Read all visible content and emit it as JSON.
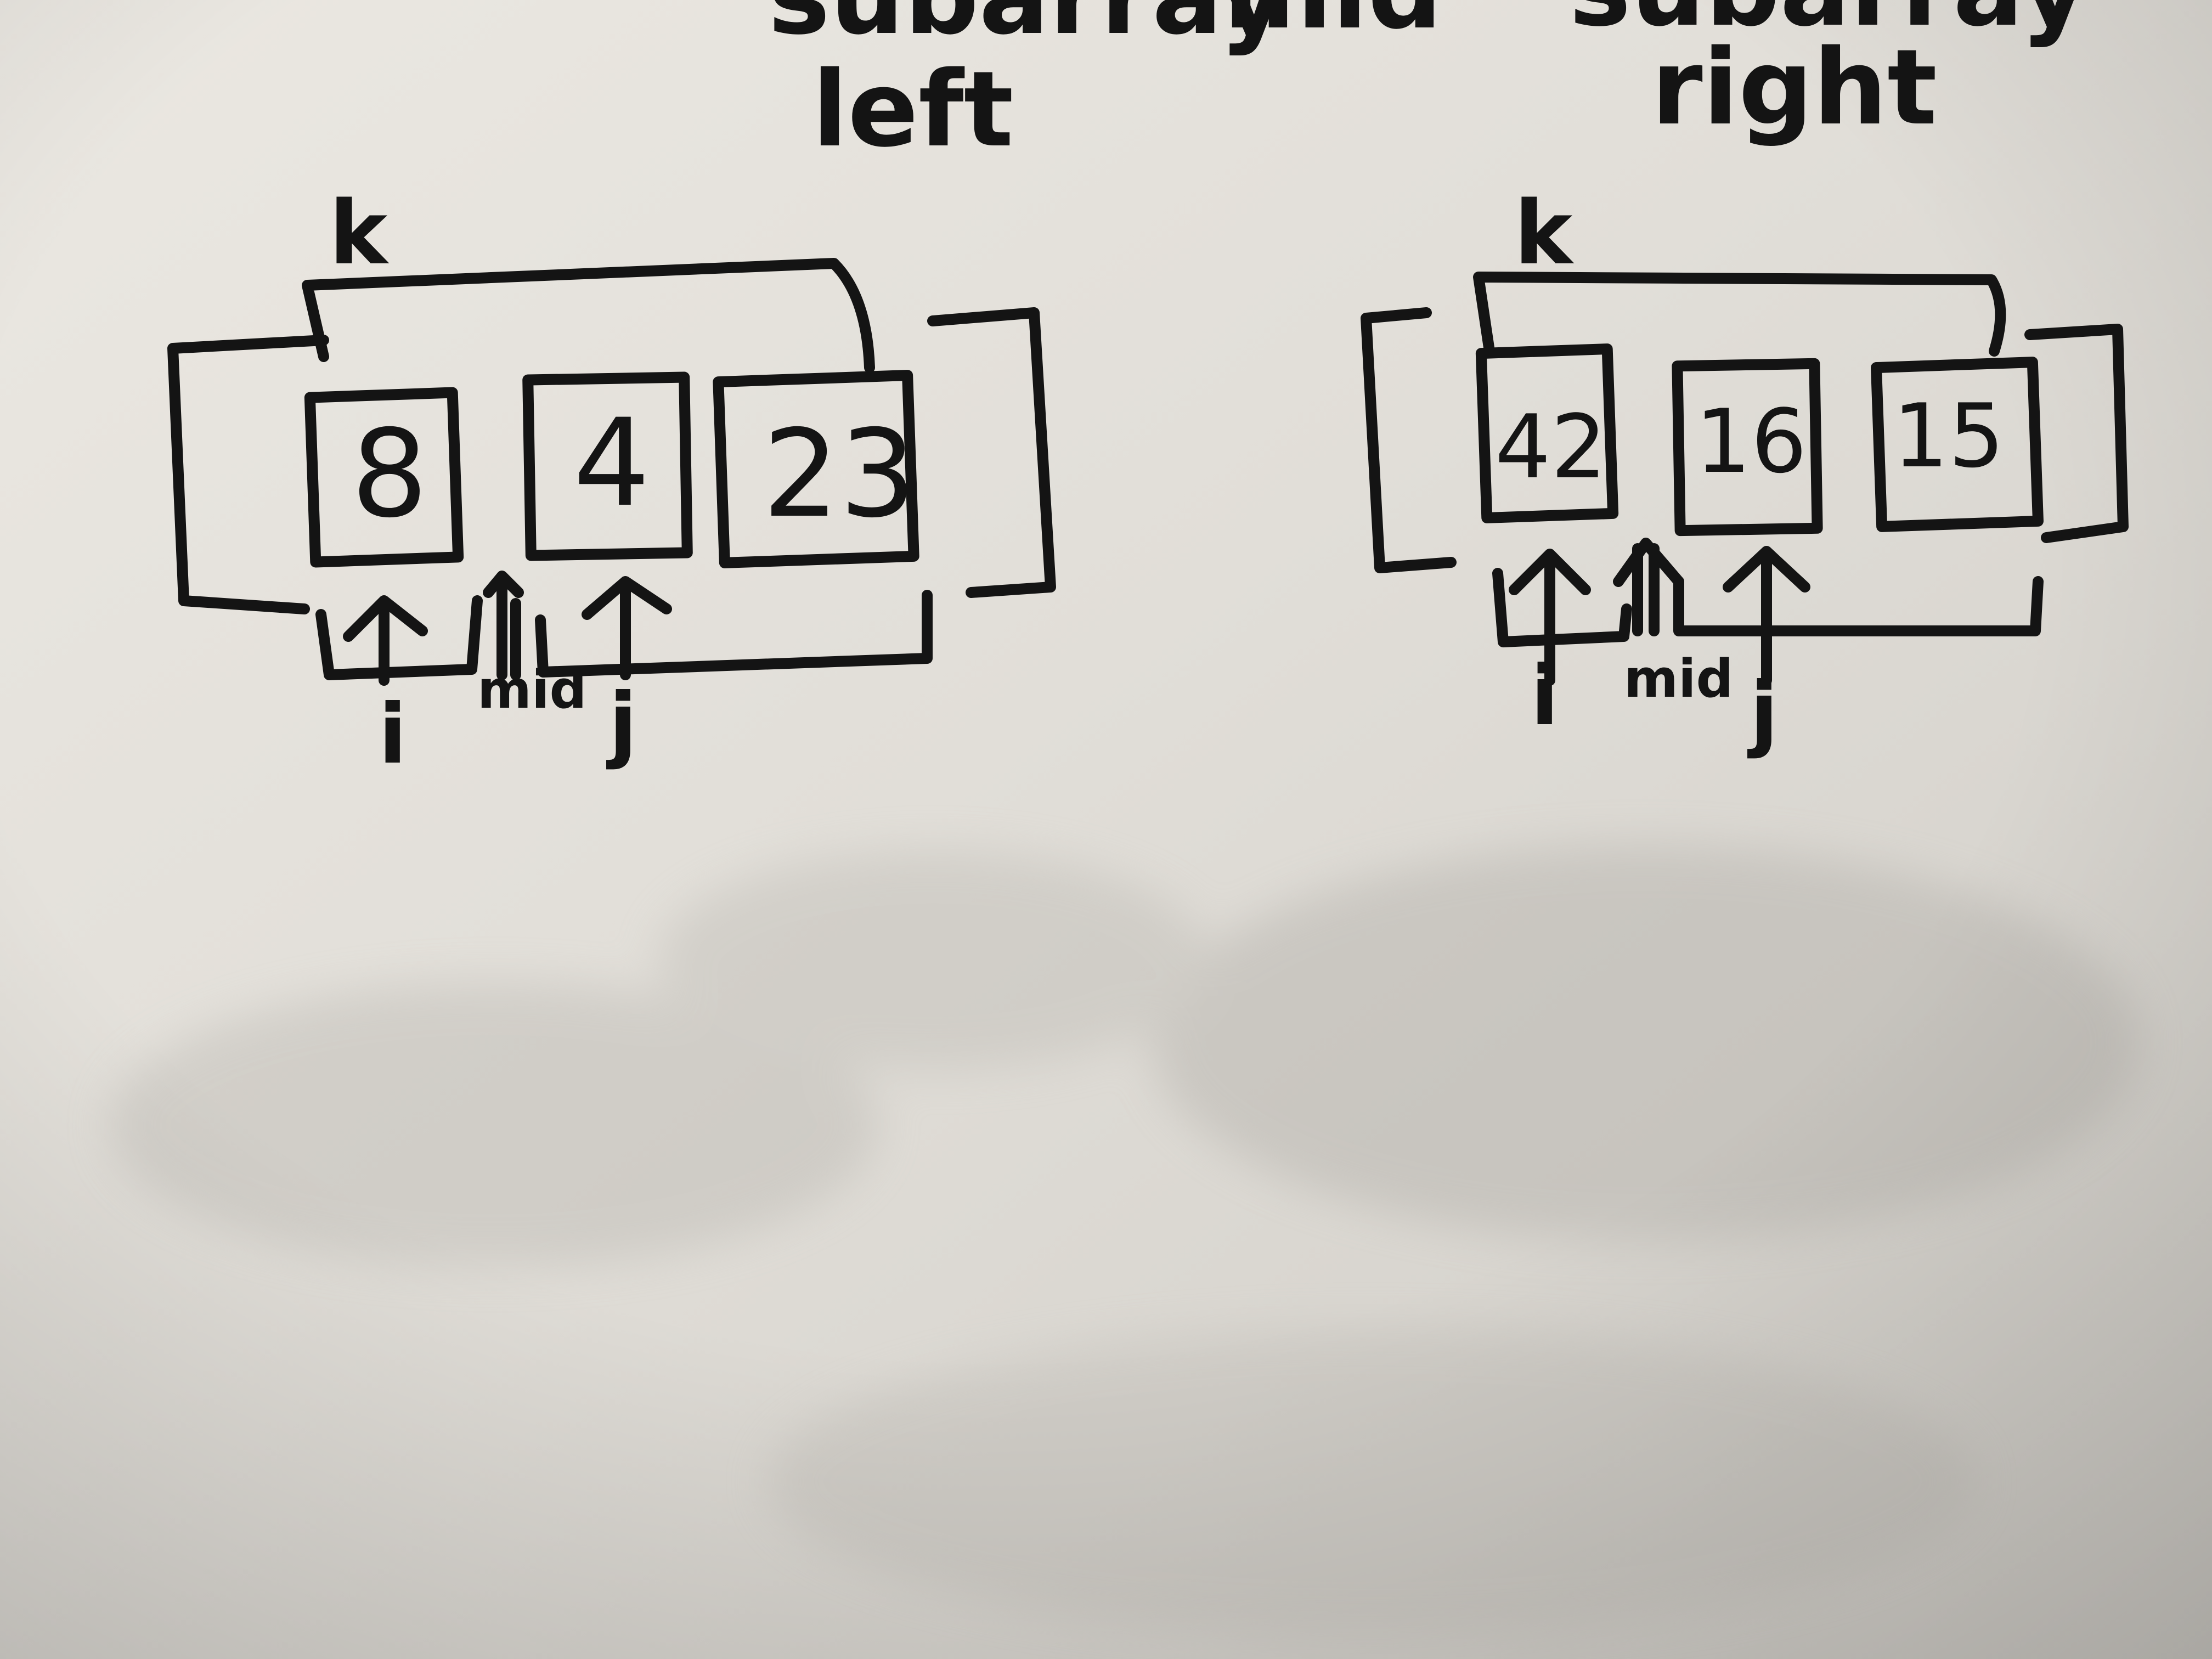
{
  "header": {
    "cut_words": [
      "subarray",
      "mid",
      "subarray"
    ],
    "left_label": "left",
    "right_label": "right"
  },
  "left_diagram": {
    "k_label": "k",
    "values": [
      "8",
      "4",
      "23"
    ],
    "pointers": {
      "i": "i",
      "mid": "mid",
      "j": "j"
    }
  },
  "right_diagram": {
    "k_label": "k",
    "values": [
      "42",
      "16",
      "15"
    ],
    "pointers": {
      "i": "i",
      "mid": "mid",
      "j": "j"
    }
  },
  "colors": {
    "board": "#e6e3dd",
    "ink": "#141414"
  }
}
